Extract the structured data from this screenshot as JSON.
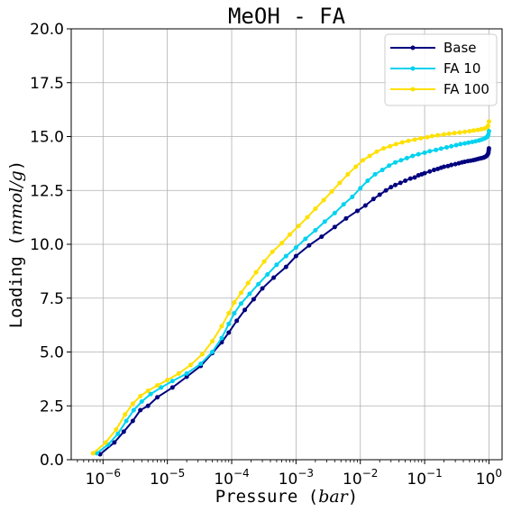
{
  "chart_data": {
    "type": "line",
    "title": "MeOH - FA",
    "xlabel_prefix": "Pressure",
    "xlabel_unit": "bar",
    "ylabel_prefix": "Loading",
    "ylabel_unit": "mmol/g",
    "xscale": "log",
    "xlim": [
      3.2e-07,
      1.6
    ],
    "ylim": [
      0,
      20
    ],
    "x_ticks": [
      1e-06,
      1e-05,
      0.0001,
      0.001,
      0.01,
      0.1,
      1
    ],
    "x_tick_labels": [
      {
        "base": "10",
        "exp": "−6"
      },
      {
        "base": "10",
        "exp": "−5"
      },
      {
        "base": "10",
        "exp": "−4"
      },
      {
        "base": "10",
        "exp": "−3"
      },
      {
        "base": "10",
        "exp": "−2"
      },
      {
        "base": "10",
        "exp": "−1"
      },
      {
        "base": "10",
        "exp": "0"
      }
    ],
    "y_ticks": [
      0,
      2.5,
      5,
      7.5,
      10,
      12.5,
      15,
      17.5,
      20
    ],
    "y_tick_labels": [
      "0.0",
      "2.5",
      "5.0",
      "7.5",
      "10.0",
      "12.5",
      "15.0",
      "17.5",
      "20.0"
    ],
    "grid": true,
    "legend_position": "top-right",
    "series": [
      {
        "name": "Base",
        "color": "#00007f",
        "x": [
          9e-07,
          1.5e-06,
          2.1e-06,
          2.9e-06,
          3.8e-06,
          5e-06,
          7e-06,
          1.2e-05,
          2e-05,
          3.3e-05,
          5e-05,
          7e-05,
          9e-05,
          0.00012,
          0.00016,
          0.00022,
          0.0003,
          0.00045,
          0.0007,
          0.001,
          0.0016,
          0.0025,
          0.004,
          0.006,
          0.009,
          0.012,
          0.016,
          0.02,
          0.025,
          0.03,
          0.035,
          0.042,
          0.05,
          0.06,
          0.07,
          0.08,
          0.09,
          0.1,
          0.12,
          0.14,
          0.16,
          0.18,
          0.2,
          0.23,
          0.26,
          0.3,
          0.34,
          0.38,
          0.42,
          0.47,
          0.52,
          0.57,
          0.62,
          0.67,
          0.72,
          0.77,
          0.82,
          0.86,
          0.9,
          0.93,
          0.96,
          0.98,
          0.99,
          1.0
        ],
        "y": [
          0.25,
          0.8,
          1.3,
          1.8,
          2.3,
          2.5,
          2.9,
          3.35,
          3.85,
          4.35,
          4.95,
          5.45,
          5.9,
          6.45,
          6.95,
          7.45,
          7.95,
          8.45,
          8.95,
          9.45,
          9.95,
          10.35,
          10.8,
          11.2,
          11.55,
          11.8,
          12.1,
          12.3,
          12.5,
          12.65,
          12.75,
          12.85,
          12.95,
          13.05,
          13.1,
          13.2,
          13.25,
          13.3,
          13.38,
          13.45,
          13.5,
          13.55,
          13.6,
          13.63,
          13.68,
          13.72,
          13.76,
          13.8,
          13.83,
          13.86,
          13.88,
          13.9,
          13.93,
          13.96,
          13.98,
          14.0,
          14.02,
          14.05,
          14.08,
          14.12,
          14.18,
          14.25,
          14.35,
          14.45
        ]
      },
      {
        "name": "FA 10",
        "color": "#00d2ef",
        "x": [
          8e-07,
          1.2e-06,
          1.7e-06,
          2.3e-06,
          3e-06,
          4e-06,
          5.5e-06,
          8e-06,
          1.2e-05,
          2e-05,
          3.3e-05,
          5e-05,
          7e-05,
          9e-05,
          0.00011,
          0.00014,
          0.00019,
          0.00026,
          0.00036,
          0.0005,
          0.0007,
          0.001,
          0.0014,
          0.002,
          0.0028,
          0.004,
          0.0055,
          0.0075,
          0.01,
          0.013,
          0.017,
          0.022,
          0.028,
          0.035,
          0.043,
          0.053,
          0.065,
          0.08,
          0.1,
          0.12,
          0.15,
          0.18,
          0.22,
          0.26,
          0.31,
          0.36,
          0.42,
          0.48,
          0.55,
          0.62,
          0.7,
          0.77,
          0.84,
          0.9,
          0.95,
          0.98,
          1.0
        ],
        "y": [
          0.3,
          0.7,
          1.2,
          1.8,
          2.3,
          2.7,
          3.05,
          3.35,
          3.65,
          4.0,
          4.45,
          5.0,
          5.65,
          6.3,
          6.8,
          7.25,
          7.7,
          8.15,
          8.6,
          9.05,
          9.45,
          9.85,
          10.25,
          10.65,
          11.05,
          11.45,
          11.85,
          12.2,
          12.6,
          12.95,
          13.25,
          13.45,
          13.65,
          13.8,
          13.9,
          14.0,
          14.1,
          14.18,
          14.25,
          14.32,
          14.38,
          14.44,
          14.5,
          14.55,
          14.6,
          14.65,
          14.68,
          14.72,
          14.75,
          14.78,
          14.82,
          14.86,
          14.9,
          14.95,
          15.0,
          15.1,
          15.25
        ]
      },
      {
        "name": "FA 100",
        "color": "#ffe000",
        "x": [
          7e-07,
          1.1e-06,
          1.6e-06,
          2.2e-06,
          2.9e-06,
          3.8e-06,
          5e-06,
          7e-06,
          1e-05,
          1.5e-05,
          2.3e-05,
          3.5e-05,
          5e-05,
          7e-05,
          9e-05,
          0.00011,
          0.00014,
          0.00018,
          0.00024,
          0.00032,
          0.00043,
          0.0006,
          0.0008,
          0.0011,
          0.0015,
          0.002,
          0.0027,
          0.0036,
          0.0048,
          0.0064,
          0.0085,
          0.011,
          0.014,
          0.018,
          0.023,
          0.029,
          0.036,
          0.045,
          0.056,
          0.07,
          0.087,
          0.11,
          0.13,
          0.16,
          0.2,
          0.24,
          0.29,
          0.35,
          0.42,
          0.5,
          0.58,
          0.67,
          0.76,
          0.85,
          0.92,
          0.97,
          1.0
        ],
        "y": [
          0.3,
          0.8,
          1.4,
          2.1,
          2.6,
          2.95,
          3.2,
          3.45,
          3.7,
          4.0,
          4.4,
          4.9,
          5.5,
          6.2,
          6.8,
          7.3,
          7.75,
          8.2,
          8.7,
          9.2,
          9.65,
          10.05,
          10.45,
          10.85,
          11.25,
          11.65,
          12.05,
          12.45,
          12.85,
          13.25,
          13.6,
          13.9,
          14.1,
          14.3,
          14.45,
          14.55,
          14.65,
          14.73,
          14.8,
          14.86,
          14.92,
          14.97,
          15.02,
          15.06,
          15.1,
          15.13,
          15.16,
          15.19,
          15.22,
          15.25,
          15.28,
          15.31,
          15.34,
          15.37,
          15.42,
          15.5,
          15.7
        ]
      }
    ]
  }
}
